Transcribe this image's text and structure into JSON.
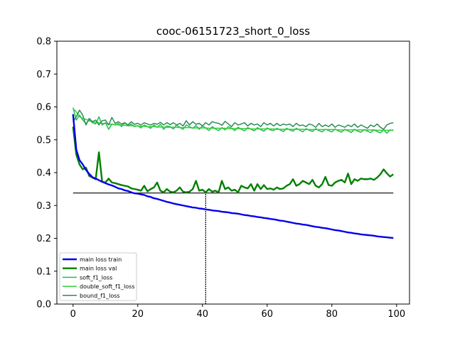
{
  "chart_data": {
    "type": "line",
    "title": "cooc-06151723_short_0_loss",
    "xlabel": "",
    "ylabel": "",
    "xlim": [
      -5,
      104
    ],
    "ylim": [
      0.0,
      0.8
    ],
    "xticks": [
      0,
      20,
      40,
      60,
      80,
      100
    ],
    "yticks": [
      0.0,
      0.1,
      0.2,
      0.3,
      0.4,
      0.5,
      0.6,
      0.7,
      0.8
    ],
    "xtick_labels": [
      "0",
      "20",
      "40",
      "60",
      "80",
      "100"
    ],
    "ytick_labels": [
      "0.0",
      "0.1",
      "0.2",
      "0.3",
      "0.4",
      "0.5",
      "0.6",
      "0.7",
      "0.8"
    ],
    "grid": false,
    "legend_position": "lower-left",
    "series": [
      {
        "name": "main loss train",
        "color": "#0000ee",
        "width": 2.4,
        "values": [
          0.578,
          0.47,
          0.438,
          0.425,
          0.408,
          0.396,
          0.386,
          0.382,
          0.377,
          0.372,
          0.368,
          0.364,
          0.361,
          0.357,
          0.352,
          0.35,
          0.346,
          0.344,
          0.34,
          0.337,
          0.336,
          0.334,
          0.332,
          0.328,
          0.326,
          0.322,
          0.32,
          0.317,
          0.314,
          0.311,
          0.309,
          0.306,
          0.304,
          0.302,
          0.3,
          0.298,
          0.296,
          0.294,
          0.293,
          0.291,
          0.29,
          0.288,
          0.287,
          0.285,
          0.284,
          0.283,
          0.281,
          0.28,
          0.279,
          0.277,
          0.276,
          0.275,
          0.273,
          0.271,
          0.27,
          0.268,
          0.267,
          0.265,
          0.264,
          0.262,
          0.261,
          0.259,
          0.258,
          0.256,
          0.254,
          0.253,
          0.251,
          0.249,
          0.247,
          0.245,
          0.244,
          0.242,
          0.241,
          0.239,
          0.237,
          0.235,
          0.234,
          0.232,
          0.231,
          0.229,
          0.227,
          0.225,
          0.224,
          0.222,
          0.22,
          0.218,
          0.217,
          0.215,
          0.214,
          0.212,
          0.211,
          0.21,
          0.209,
          0.208,
          0.206,
          0.205,
          0.204,
          0.203,
          0.202,
          0.201
        ]
      },
      {
        "name": "main loss val",
        "color": "#008000",
        "width": 2.4,
        "values": [
          0.54,
          0.455,
          0.425,
          0.41,
          0.415,
          0.39,
          0.385,
          0.38,
          0.462,
          0.372,
          0.37,
          0.382,
          0.37,
          0.368,
          0.365,
          0.362,
          0.36,
          0.358,
          0.352,
          0.35,
          0.348,
          0.345,
          0.36,
          0.343,
          0.35,
          0.355,
          0.37,
          0.345,
          0.34,
          0.35,
          0.342,
          0.34,
          0.345,
          0.355,
          0.342,
          0.34,
          0.342,
          0.35,
          0.375,
          0.345,
          0.348,
          0.34,
          0.35,
          0.342,
          0.345,
          0.34,
          0.375,
          0.35,
          0.355,
          0.345,
          0.348,
          0.34,
          0.36,
          0.355,
          0.352,
          0.365,
          0.345,
          0.365,
          0.35,
          0.362,
          0.35,
          0.352,
          0.348,
          0.355,
          0.35,
          0.352,
          0.36,
          0.365,
          0.38,
          0.36,
          0.365,
          0.375,
          0.37,
          0.365,
          0.378,
          0.36,
          0.355,
          0.365,
          0.387,
          0.362,
          0.36,
          0.37,
          0.375,
          0.378,
          0.37,
          0.397,
          0.365,
          0.38,
          0.375,
          0.382,
          0.38,
          0.38,
          0.382,
          0.378,
          0.385,
          0.395,
          0.41,
          0.398,
          0.388,
          0.395
        ]
      },
      {
        "name": "soft_f1_loss",
        "color": "#22bb55",
        "width": 1.5,
        "values": [
          0.598,
          0.56,
          0.575,
          0.56,
          0.55,
          0.56,
          0.552,
          0.548,
          0.57,
          0.545,
          0.552,
          0.532,
          0.548,
          0.545,
          0.55,
          0.54,
          0.552,
          0.542,
          0.548,
          0.54,
          0.543,
          0.536,
          0.545,
          0.54,
          0.535,
          0.545,
          0.538,
          0.547,
          0.532,
          0.542,
          0.54,
          0.533,
          0.545,
          0.538,
          0.532,
          0.545,
          0.54,
          0.535,
          0.543,
          0.532,
          0.542,
          0.536,
          0.528,
          0.54,
          0.533,
          0.528,
          0.537,
          0.53,
          0.54,
          0.535,
          0.528,
          0.538,
          0.532,
          0.527,
          0.537,
          0.532,
          0.527,
          0.537,
          0.531,
          0.526,
          0.536,
          0.53,
          0.528,
          0.535,
          0.53,
          0.525,
          0.535,
          0.53,
          0.526,
          0.535,
          0.53,
          0.524,
          0.534,
          0.529,
          0.525,
          0.534,
          0.528,
          0.524,
          0.532,
          0.528,
          0.524,
          0.533,
          0.527,
          0.523,
          0.532,
          0.527,
          0.522,
          0.532,
          0.526,
          0.523,
          0.531,
          0.526,
          0.522,
          0.53,
          0.525,
          0.521,
          0.53,
          0.52,
          0.53,
          0.528
        ]
      },
      {
        "name": "double_soft_f1_loss",
        "color": "#33cc33",
        "width": 1.5,
        "values": [
          0.595,
          0.585,
          0.57,
          0.565,
          0.562,
          0.558,
          0.555,
          0.553,
          0.552,
          0.55,
          0.549,
          0.548,
          0.547,
          0.546,
          0.545,
          0.545,
          0.544,
          0.543,
          0.543,
          0.542,
          0.542,
          0.541,
          0.541,
          0.54,
          0.54,
          0.54,
          0.539,
          0.539,
          0.539,
          0.538,
          0.538,
          0.538,
          0.538,
          0.537,
          0.537,
          0.537,
          0.537,
          0.536,
          0.536,
          0.536,
          0.536,
          0.536,
          0.535,
          0.535,
          0.535,
          0.535,
          0.535,
          0.535,
          0.534,
          0.534,
          0.534,
          0.534,
          0.534,
          0.534,
          0.534,
          0.533,
          0.533,
          0.533,
          0.533,
          0.533,
          0.533,
          0.533,
          0.533,
          0.532,
          0.532,
          0.532,
          0.532,
          0.532,
          0.532,
          0.532,
          0.532,
          0.532,
          0.531,
          0.531,
          0.531,
          0.531,
          0.531,
          0.531,
          0.531,
          0.531,
          0.531,
          0.531,
          0.53,
          0.53,
          0.53,
          0.53,
          0.53,
          0.53,
          0.53,
          0.53,
          0.53,
          0.53,
          0.53,
          0.53,
          0.529,
          0.529,
          0.529,
          0.529,
          0.529,
          0.53
        ]
      },
      {
        "name": "bound_f1_loss",
        "color": "#2e8b57",
        "width": 1.5,
        "values": [
          0.555,
          0.57,
          0.59,
          0.575,
          0.545,
          0.565,
          0.555,
          0.56,
          0.545,
          0.558,
          0.56,
          0.545,
          0.568,
          0.55,
          0.555,
          0.548,
          0.552,
          0.545,
          0.555,
          0.547,
          0.55,
          0.545,
          0.552,
          0.548,
          0.545,
          0.55,
          0.547,
          0.553,
          0.545,
          0.552,
          0.546,
          0.552,
          0.545,
          0.55,
          0.542,
          0.558,
          0.545,
          0.555,
          0.547,
          0.55,
          0.542,
          0.552,
          0.545,
          0.555,
          0.552,
          0.55,
          0.544,
          0.556,
          0.548,
          0.54,
          0.552,
          0.545,
          0.548,
          0.552,
          0.542,
          0.55,
          0.545,
          0.548,
          0.54,
          0.552,
          0.545,
          0.55,
          0.542,
          0.55,
          0.543,
          0.548,
          0.545,
          0.548,
          0.54,
          0.55,
          0.543,
          0.545,
          0.54,
          0.548,
          0.545,
          0.538,
          0.55,
          0.54,
          0.545,
          0.54,
          0.548,
          0.538,
          0.545,
          0.542,
          0.538,
          0.545,
          0.54,
          0.548,
          0.538,
          0.545,
          0.54,
          0.535,
          0.545,
          0.54,
          0.548,
          0.538,
          0.532,
          0.545,
          0.55,
          0.552
        ]
      }
    ],
    "reference_lines": {
      "horizontal": {
        "y": 0.338,
        "x_from": 0,
        "x_to": 99
      },
      "vertical": {
        "x": 41,
        "y_from": 0.0,
        "y_to": 0.338
      }
    }
  }
}
